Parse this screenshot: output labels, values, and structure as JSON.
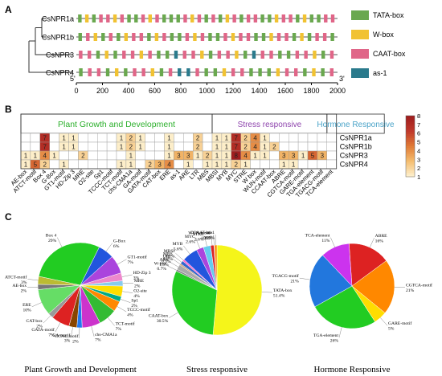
{
  "colors": {
    "TATA-box": "#6aa84f",
    "W-box": "#f1c232",
    "CAAT-box": "#e06688",
    "as-1": "#2a7a8c",
    "cat_green": "#2db02d",
    "cat_purple": "#8e44ad",
    "cat_blue": "#4aa3c8",
    "heat_low": "#fdeec9",
    "heat_high": "#c0392b"
  },
  "panels": {
    "A": "A",
    "B": "B",
    "C": "C"
  },
  "chart_data": [
    {
      "type": "diagram",
      "genes": [
        {
          "name": "CsNPR1a",
          "pattern": "TWTCCWCTTCWCTTTCWCTCTWCTCCTTWCCTWTTCC"
        },
        {
          "name": "CsNPR1b",
          "pattern": "TCWTCTWCCTWCTTCWCTTCWCCTTWCCTWTCCT"
        },
        {
          "name": "CsNPR3",
          "pattern": "CCTWTCCWCTTACCWTCCWTACCTTCCWTC"
        },
        {
          "name": "CsNPR4",
          "pattern": "TCCTWTCCWTCAACTTWCCTTTWCCTWTC"
        }
      ],
      "legend": [
        "TATA-box",
        "W-box",
        "CAAT-box",
        "as-1"
      ],
      "axis": {
        "start_label": "5'",
        "end_label": "3'",
        "min": 0,
        "max": 2000,
        "ticks": [
          0,
          200,
          400,
          600,
          800,
          1000,
          1200,
          1400,
          1600,
          1800,
          2000
        ]
      }
    },
    {
      "type": "heatmap",
      "groups": [
        {
          "label": "Plant Growth and Development",
          "count": 20
        },
        {
          "label": "Stress responsive",
          "count": 12
        },
        {
          "label": "Hormone Responsive",
          "count": 6
        }
      ],
      "columns": [
        "AE-box",
        "ATCT-motif",
        "Box 4",
        "G-Box",
        "GT1-motif",
        "HD-Zip 3",
        "MRE",
        "O2-site",
        "Sp1",
        "TCCC-motif",
        "TCT-motif",
        "chs-CMA1a",
        "GA-motif",
        "GATA-motif",
        "CAT-box",
        "ERE",
        "as-1",
        "ARE",
        "LTR",
        "MBS",
        "MBSI",
        "MYB",
        "MYC",
        "STRE",
        "W box",
        "WUN-motif",
        "CCAAT-box",
        "ABRE",
        "CGTCA-motif",
        "GARE-motif",
        "TGA-element",
        "TGACG-motif",
        "TCA-element"
      ],
      "rows": [
        "CsNPR1a",
        "CsNPR1b",
        "CsNPR3",
        "CsNPR4"
      ],
      "values": [
        [
          0,
          0,
          7,
          0,
          1,
          1,
          0,
          0,
          0,
          0,
          1,
          2,
          1,
          0,
          0,
          1,
          0,
          0,
          2,
          0,
          1,
          1,
          7,
          2,
          4,
          1,
          0,
          0,
          0,
          0,
          0,
          0,
          0
        ],
        [
          0,
          0,
          7,
          0,
          1,
          1,
          0,
          0,
          0,
          0,
          1,
          2,
          1,
          0,
          0,
          1,
          0,
          0,
          2,
          0,
          1,
          1,
          7,
          2,
          4,
          1,
          2,
          0,
          0,
          0,
          0,
          0,
          0
        ],
        [
          1,
          1,
          4,
          1,
          0,
          0,
          2,
          0,
          0,
          0,
          0,
          1,
          0,
          0,
          0,
          1,
          3,
          3,
          1,
          2,
          1,
          1,
          8,
          4,
          1,
          1,
          0,
          3,
          3,
          1,
          5,
          3,
          0
        ],
        [
          1,
          5,
          2,
          0,
          1,
          0,
          0,
          0,
          0,
          0,
          1,
          1,
          0,
          2,
          3,
          4,
          0,
          1,
          0,
          1,
          1,
          1,
          2,
          1,
          0,
          0,
          0,
          1,
          1,
          0,
          0,
          0,
          0
        ]
      ],
      "scale": {
        "min": 1,
        "max": 8,
        "ticks": [
          1,
          2,
          3,
          4,
          5,
          6,
          7,
          8
        ]
      }
    },
    {
      "type": "pie",
      "title": "Plant Growth and Development",
      "slices": [
        {
          "label": "Box 4",
          "pct": "29%",
          "value": 29,
          "color": "#22cc22"
        },
        {
          "label": "G-Box",
          "pct": "6%",
          "value": 6,
          "color": "#2255dd"
        },
        {
          "label": "GT1-motif",
          "pct": "7%",
          "value": 7,
          "color": "#aa44dd"
        },
        {
          "label": "HD-Zip 3",
          "pct": "3%",
          "value": 3,
          "color": "#ee88cc"
        },
        {
          "label": "MRE",
          "pct": "2%",
          "value": 2,
          "color": "#88ccee"
        },
        {
          "label": "O2-site",
          "pct": "4%",
          "value": 4,
          "color": "#ffdd00"
        },
        {
          "label": "Sp1",
          "pct": "2%",
          "value": 2,
          "color": "#00aa88"
        },
        {
          "label": "TCCC-motif",
          "pct": "4%",
          "value": 4,
          "color": "#ff8800"
        },
        {
          "label": "TCT-motif",
          "pct": "7%",
          "value": 7,
          "color": "#33bb33"
        },
        {
          "label": "chs-CMA1a",
          "pct": "7%",
          "value": 7,
          "color": "#cc33cc"
        },
        {
          "label": "GCN4_motif",
          "pct": "2%",
          "value": 2,
          "color": "#2277ee"
        },
        {
          "label": "GA-motif",
          "pct": "3%",
          "value": 3,
          "color": "#884400"
        },
        {
          "label": "GATA-motif",
          "pct": "7%",
          "value": 7,
          "color": "#dd2222"
        },
        {
          "label": "CAT-box",
          "pct": "2%",
          "value": 2,
          "color": "#999999"
        },
        {
          "label": "ERE",
          "pct": "10%",
          "value": 10,
          "color": "#66dd66"
        },
        {
          "label": "AE-box",
          "pct": "2%",
          "value": 2,
          "color": "#777777"
        },
        {
          "label": "ATCT-motif",
          "pct": "3%",
          "value": 3,
          "color": "#bbbb33"
        }
      ]
    },
    {
      "type": "pie",
      "title": "Stress responsive",
      "slices": [
        {
          "label": "TATA-box",
          "pct": "51.4%",
          "value": 51.4,
          "color": "#f5f51a"
        },
        {
          "label": "CAAT-box",
          "pct": "30.5%",
          "value": 30.5,
          "color": "#22cc22"
        },
        {
          "label": "W-box",
          "pct": "0.7%",
          "value": 0.7,
          "color": "#888888"
        },
        {
          "label": "ARE",
          "pct": "1.9%",
          "value": 1.9,
          "color": "#aaaaaa"
        },
        {
          "label": "LTR",
          "pct": "0.5%",
          "value": 0.5,
          "color": "#cc9966"
        },
        {
          "label": "MBS",
          "pct": "1.2%",
          "value": 1.2,
          "color": "#3366cc"
        },
        {
          "label": "MBSI",
          "pct": "0.7%",
          "value": 0.7,
          "color": "#ff66cc"
        },
        {
          "label": "MYB",
          "pct": "5.6%",
          "value": 5.6,
          "color": "#2255dd"
        },
        {
          "label": "MYC",
          "pct": "2.6%",
          "value": 2.6,
          "color": "#aa44dd"
        },
        {
          "label": "STRE",
          "pct": "2.6%",
          "value": 2.6,
          "color": "#66ccee"
        },
        {
          "label": "WUN-motif",
          "pct": "1.2%",
          "value": 1.2,
          "color": "#dd2222"
        },
        {
          "label": "CCAAT-box",
          "pct": "0.2%",
          "value": 0.2,
          "color": "#444444"
        },
        {
          "label": "as-1",
          "pct": "0.9%",
          "value": 0.9,
          "color": "#ff8800"
        }
      ]
    },
    {
      "type": "pie",
      "title": "Hormone Responsive",
      "slices": [
        {
          "label": "ABRE",
          "pct": "16%",
          "value": 16,
          "color": "#dd2222"
        },
        {
          "label": "CGTCA-motif",
          "pct": "21%",
          "value": 21,
          "color": "#ff8800"
        },
        {
          "label": "GARE-motif",
          "pct": "5%",
          "value": 5,
          "color": "#ffdd00"
        },
        {
          "label": "TGA-element",
          "pct": "26%",
          "value": 26,
          "color": "#22cc22"
        },
        {
          "label": "TGACG-motif",
          "pct": "21%",
          "value": 21,
          "color": "#2277dd"
        },
        {
          "label": "TCA-element",
          "pct": "11%",
          "value": 11,
          "color": "#cc33ee"
        }
      ]
    }
  ]
}
